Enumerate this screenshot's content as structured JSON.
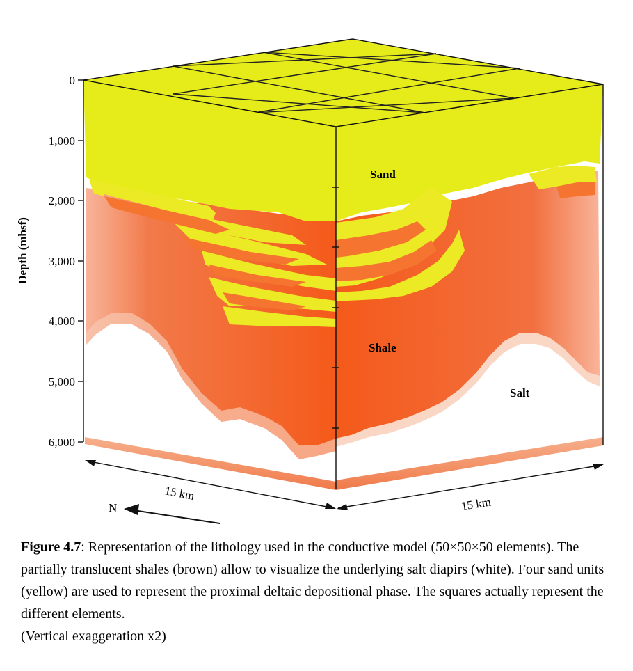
{
  "figure": {
    "depth_axis": {
      "title": "Depth (mbsf)",
      "ticks": [
        "0",
        "1,000",
        "2,000",
        "3,000",
        "4,000",
        "5,000",
        "6,000"
      ]
    },
    "units": {
      "sand": "Sand",
      "shale": "Shale",
      "salt": "Salt"
    },
    "dimensions": {
      "left_edge": "15 km",
      "right_edge": "15 km"
    },
    "north_label": "N",
    "colors": {
      "sand": "#e6ec1a",
      "shale": "#f45a1a",
      "shale_light": "#f8a98a",
      "salt": "#ffffff"
    }
  },
  "caption": {
    "label": "Figure 4.7",
    "text": ": Representation of the lithology used in the conductive model (50×50×50 elements). The partially translucent shales (brown) allow to visualize the underlying salt diapirs (white). Four sand units (yellow) are used to represent the proximal deltaic depositional phase. The squares actually represent the different elements.",
    "note": "(Vertical exaggeration x2)"
  }
}
